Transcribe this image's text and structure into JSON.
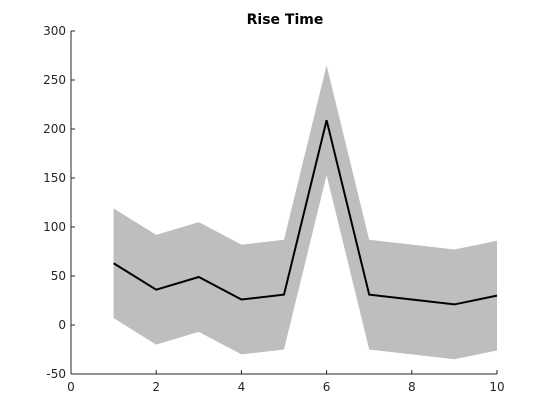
{
  "chart_data": {
    "type": "area",
    "title": "Rise Time",
    "xlabel": "",
    "ylabel": "",
    "xlim": [
      0,
      10
    ],
    "ylim": [
      -50,
      300
    ],
    "xticks": [
      0,
      2,
      4,
      6,
      8,
      10
    ],
    "yticks": [
      -50,
      0,
      50,
      100,
      150,
      200,
      250,
      300
    ],
    "grid": false,
    "legend": "none",
    "series": [
      {
        "kind": "line",
        "color": "#000000",
        "x": [
          1,
          2,
          3,
          4,
          5,
          6,
          7,
          8,
          9,
          10
        ],
        "y": [
          63,
          36,
          49,
          26,
          31,
          209,
          31,
          26,
          21,
          30
        ]
      },
      {
        "kind": "band",
        "color": "#bebebe",
        "x": [
          1,
          2,
          3,
          4,
          5,
          6,
          7,
          8,
          9,
          10
        ],
        "upper": [
          119,
          92,
          105,
          82,
          87,
          265,
          87,
          82,
          77,
          86
        ],
        "lower": [
          7,
          -20,
          -7,
          -30,
          -25,
          153,
          -25,
          -30,
          -35,
          -26
        ]
      }
    ]
  }
}
